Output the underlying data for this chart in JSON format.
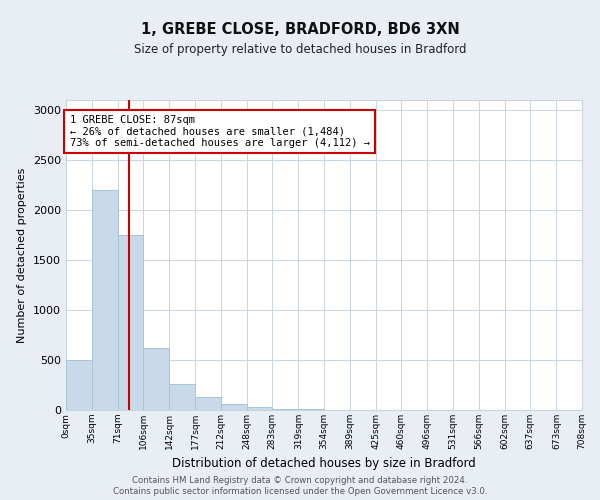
{
  "title1": "1, GREBE CLOSE, BRADFORD, BD6 3XN",
  "title2": "Size of property relative to detached houses in Bradford",
  "xlabel": "Distribution of detached houses by size in Bradford",
  "ylabel": "Number of detached properties",
  "bin_edges": [
    0,
    35,
    71,
    106,
    142,
    177,
    212,
    248,
    283,
    319,
    354,
    389,
    425,
    460,
    496,
    531,
    566,
    602,
    637,
    673,
    708
  ],
  "bar_heights": [
    500,
    2200,
    1750,
    620,
    260,
    130,
    60,
    30,
    15,
    10,
    5,
    3,
    2,
    1,
    1,
    0,
    0,
    0,
    0,
    0
  ],
  "bar_color": "#c8daea",
  "bar_edgecolor": "#a8c4d8",
  "vline_x": 87,
  "vline_color": "#cc0000",
  "ylim": [
    0,
    3100
  ],
  "annotation_text": "1 GREBE CLOSE: 87sqm\n← 26% of detached houses are smaller (1,484)\n73% of semi-detached houses are larger (4,112) →",
  "annotation_box_color": "#ffffff",
  "annotation_box_edgecolor": "#cc0000",
  "footer1": "Contains HM Land Registry data © Crown copyright and database right 2024.",
  "footer2": "Contains public sector information licensed under the Open Government Licence v3.0.",
  "bg_color": "#e8eef4",
  "plot_bg_color": "#ffffff",
  "grid_color": "#c8d4de"
}
